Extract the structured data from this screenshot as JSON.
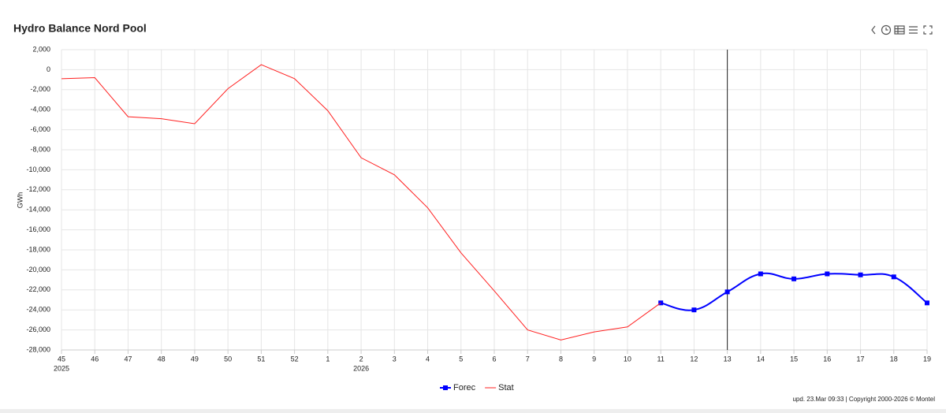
{
  "chart_data": {
    "type": "line",
    "title": "Hydro Balance Nord Pool",
    "y_axis_label": "GWh",
    "categories": [
      "45",
      "46",
      "47",
      "48",
      "49",
      "50",
      "51",
      "52",
      "1",
      "2",
      "3",
      "4",
      "5",
      "6",
      "7",
      "8",
      "9",
      "10",
      "11",
      "12",
      "13",
      "14",
      "15",
      "16",
      "17",
      "18",
      "19"
    ],
    "x_year_labels": [
      "2025",
      null,
      null,
      null,
      null,
      null,
      null,
      null,
      null,
      "2026",
      null,
      null,
      null,
      null,
      null,
      null,
      null,
      null,
      null,
      null,
      null,
      null,
      null,
      null,
      null,
      null,
      null
    ],
    "series": [
      {
        "name": "Forec",
        "color": "#0000ff",
        "smooth": true,
        "markers": true,
        "values": [
          null,
          null,
          null,
          null,
          null,
          null,
          null,
          null,
          null,
          null,
          null,
          null,
          null,
          null,
          null,
          null,
          null,
          null,
          -23300,
          -24000,
          -22200,
          -20400,
          -20900,
          -20400,
          -20500,
          -20700,
          -23300
        ]
      },
      {
        "name": "Stat",
        "color": "#ff2020",
        "smooth": false,
        "markers": false,
        "values": [
          -900,
          -800,
          -4700,
          -4900,
          -5400,
          -1900,
          500,
          -900,
          -4100,
          -8800,
          -10500,
          -13800,
          -18300,
          -22100,
          -26000,
          -27000,
          -26200,
          -25700,
          -23300,
          null,
          null,
          null,
          null,
          null,
          null,
          null,
          null
        ]
      }
    ],
    "vertical_line_at": "13",
    "ylim": [
      -28000,
      2000
    ],
    "yticks": [
      {
        "value": 2000,
        "label": "2,000"
      },
      0,
      {
        "value": -2000,
        "label": "-2,000"
      },
      {
        "value": -4000,
        "label": "-4,000"
      },
      {
        "value": -6000,
        "label": "-6,000"
      },
      {
        "value": -8000,
        "label": "-8,000"
      },
      {
        "value": -10000,
        "label": "-10,000"
      },
      {
        "value": -12000,
        "label": "-12,000"
      },
      {
        "value": -14000,
        "label": "-14,000"
      },
      {
        "value": -16000,
        "label": "-16,000"
      },
      {
        "value": -18000,
        "label": "-18,000"
      },
      {
        "value": -20000,
        "label": "-20,000"
      },
      {
        "value": -22000,
        "label": "-22,000"
      },
      {
        "value": -24000,
        "label": "-24,000"
      },
      {
        "value": -26000,
        "label": "-26,000"
      },
      {
        "value": -28000,
        "label": "-28,000"
      }
    ],
    "grid": true,
    "legend_position": "bottom",
    "footer": "upd. 23.Mar 09:33 | Copyright 2000-2026 © Montel"
  }
}
